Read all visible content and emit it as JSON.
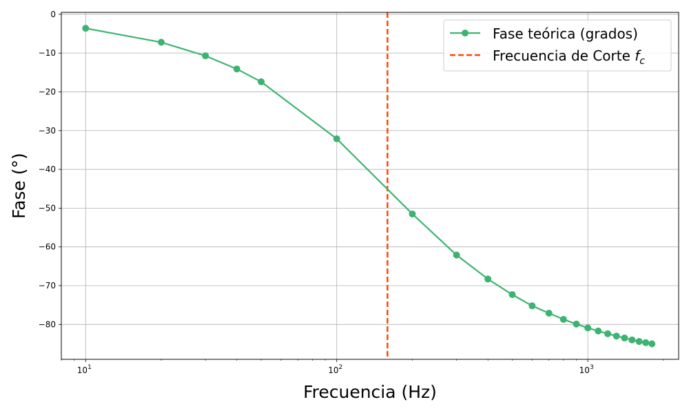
{
  "chart_data": {
    "type": "line",
    "xscale": "log",
    "xlabel": "Frecuencia (Hz)",
    "ylabel": "Fase (°)",
    "xlim": [
      8,
      2300
    ],
    "ylim": [
      -89,
      0.5
    ],
    "grid": true,
    "legend_position": "top-right",
    "x_ticks": [
      {
        "value": 10,
        "base": "10",
        "exp": "1"
      },
      {
        "value": 100,
        "base": "10",
        "exp": "2"
      },
      {
        "value": 1000,
        "base": "10",
        "exp": "3"
      }
    ],
    "y_ticks": [
      0,
      -10,
      -20,
      -30,
      -40,
      -50,
      -60,
      -70,
      -80
    ],
    "y_tick_labels": [
      "0",
      "−10",
      "−20",
      "−30",
      "−40",
      "−50",
      "−60",
      "−70",
      "−80"
    ],
    "series": [
      {
        "name": "Fase teórica (grados)",
        "color": "#3cb371",
        "marker": "circle",
        "x": [
          10,
          20,
          30,
          40,
          50,
          100,
          200,
          300,
          400,
          500,
          600,
          700,
          800,
          900,
          1000,
          1100,
          1200,
          1300,
          1400,
          1500,
          1600,
          1700,
          1800
        ],
        "y": [
          -3.6,
          -7.2,
          -10.7,
          -14.1,
          -17.4,
          -32.1,
          -51.5,
          -62.1,
          -68.3,
          -72.3,
          -75.2,
          -77.1,
          -78.7,
          -79.9,
          -80.9,
          -81.7,
          -82.4,
          -83.0,
          -83.5,
          -84.0,
          -84.4,
          -84.7,
          -85.0
        ]
      }
    ],
    "vline": {
      "name_text": "Frecuencia de Corte ",
      "name_symbol": "f",
      "name_sub": "c",
      "x": 159.2,
      "color": "#ff4500",
      "style": "dashed"
    }
  }
}
